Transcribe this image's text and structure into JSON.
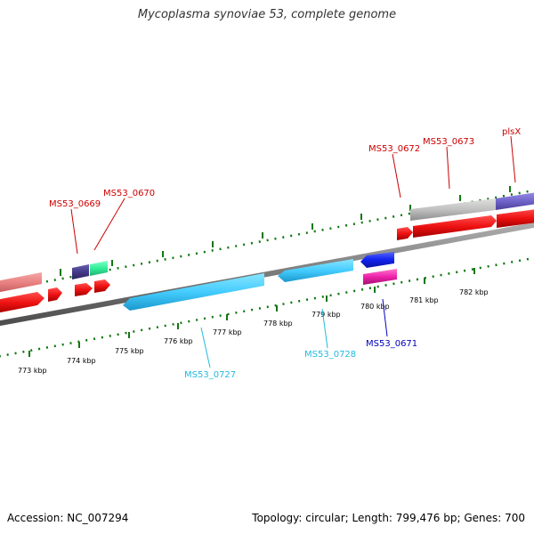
{
  "title": "Mycoplasma synoviae 53, complete genome",
  "footer": {
    "accession": "Accession: NC_007294",
    "summary": "Topology: circular; Length: 799,476 bp; Genes: 700"
  },
  "colors": {
    "backbone": "#808080",
    "forward_cds": "#ee1111",
    "reverse_cds": "#44ccff",
    "tick": "#117711",
    "label_red": "#cc0000",
    "label_blue": "#0000bb",
    "label_cyan": "#22bbdd"
  },
  "scale_labels": [
    "773 kbp",
    "774 kbp",
    "775 kbp",
    "776 kbp",
    "777 kbp",
    "778 kbp",
    "779 kbp",
    "780 kbp",
    "781 kbp",
    "782 kbp"
  ],
  "gene_labels": {
    "ms53_0669": "MS53_0669",
    "ms53_0670": "MS53_0670",
    "ms53_0672": "MS53_0672",
    "ms53_0673": "MS53_0673",
    "plsx": "plsX",
    "ms53_0671": "MS53_0671",
    "ms53_0727": "MS53_0727",
    "ms53_0728": "MS53_0728"
  }
}
